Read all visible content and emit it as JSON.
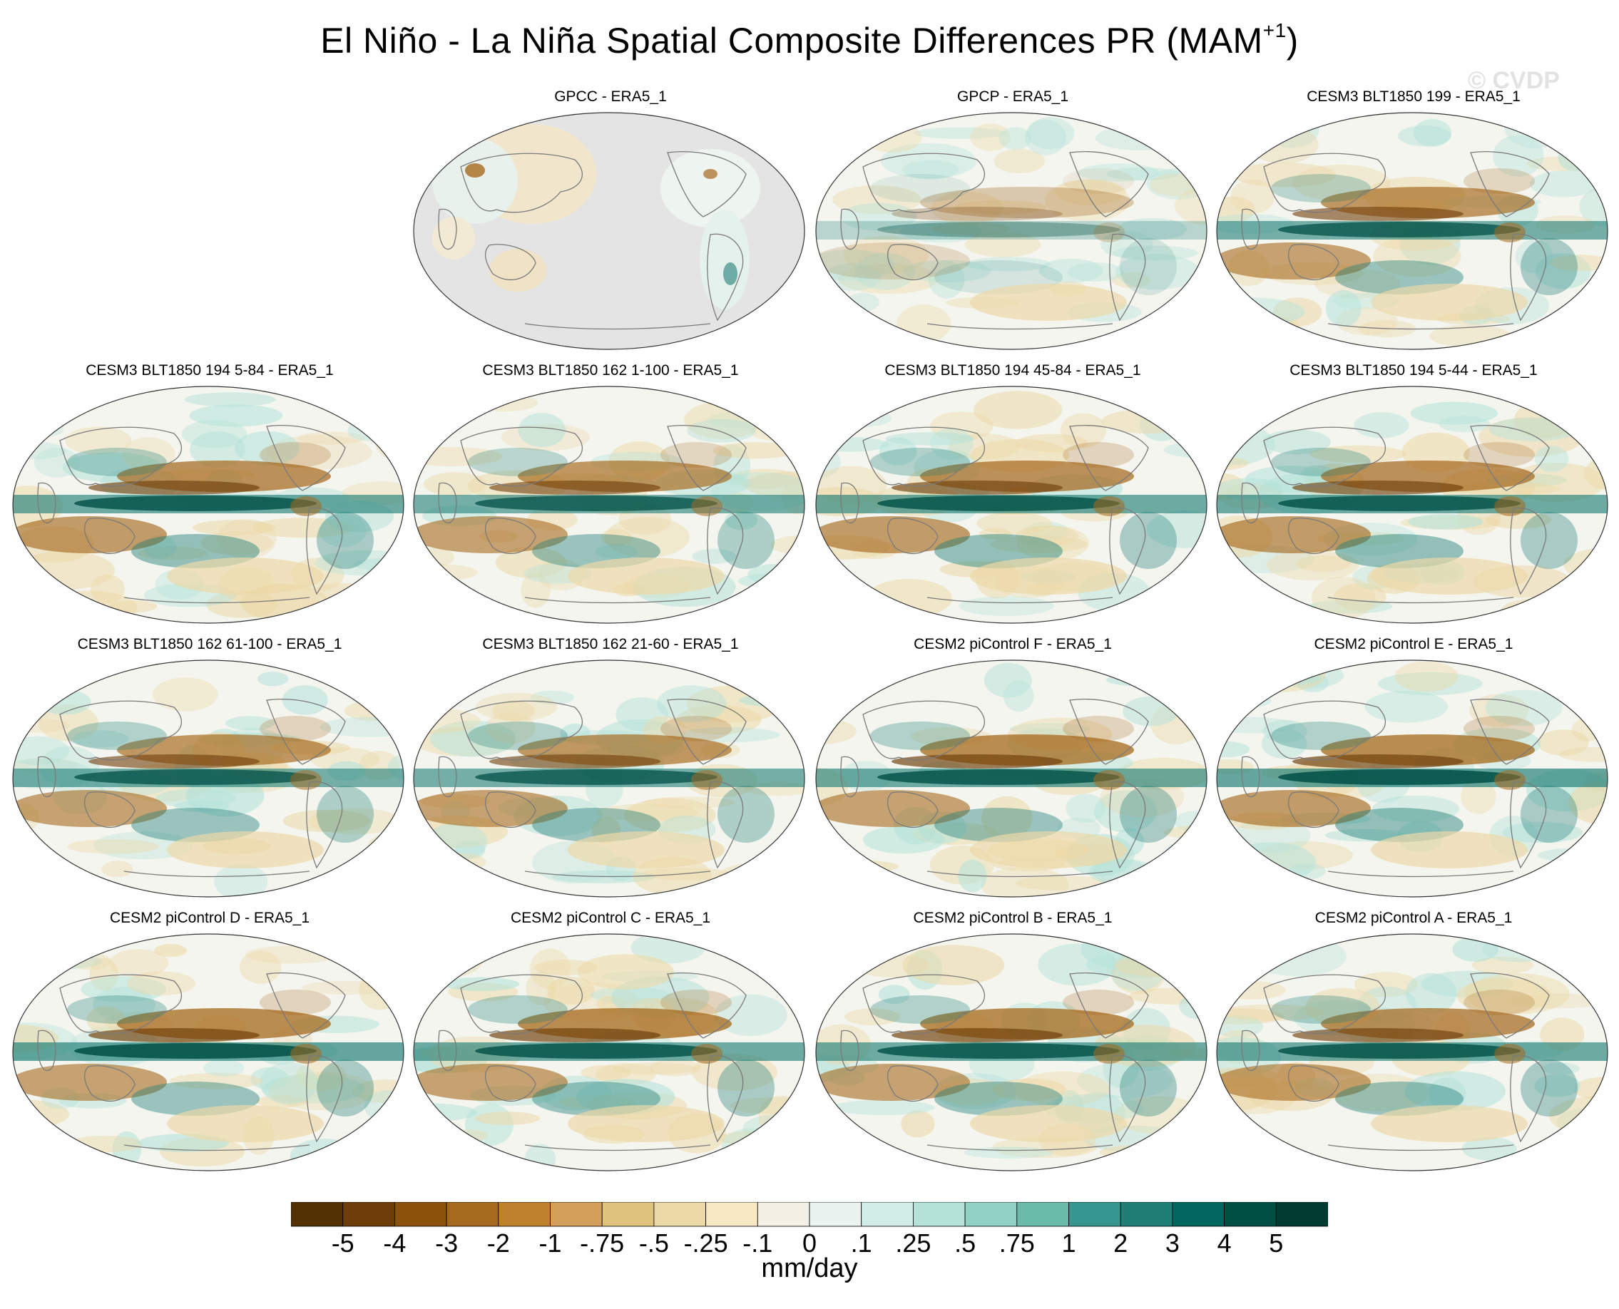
{
  "title": "El Niño - La Niña Spatial Composite Differences PR (MAM",
  "title_superscript": "+1",
  "title_close": ")",
  "watermark": "© CVDP",
  "chart_data": {
    "type": "heatmap",
    "projection": "robinson-pacific-centered",
    "panels": [
      {
        "label": "GPCC - ERA5_1",
        "land_only": true,
        "pattern": [
          0.2,
          0.1,
          0.1,
          0.2,
          0.2
        ]
      },
      {
        "label": "GPCP - ERA5_1",
        "land_only": false,
        "pattern": [
          0.35,
          0.4,
          0.2,
          0.2,
          0.3
        ]
      },
      {
        "label": "CESM3 BLT1850 199 - ERA5_1",
        "land_only": false,
        "pattern": [
          0.75,
          0.85,
          0.6,
          0.55,
          0.7
        ]
      },
      {
        "label": "CESM3 BLT1850 194 5-84 - ERA5_1",
        "land_only": false,
        "pattern": [
          0.8,
          0.9,
          0.65,
          0.6,
          0.7
        ]
      },
      {
        "label": "CESM3 BLT1850 162 1-100 - ERA5_1",
        "land_only": false,
        "pattern": [
          0.75,
          0.85,
          0.6,
          0.55,
          0.65
        ]
      },
      {
        "label": "CESM3 BLT1850 194 45-84 - ERA5_1",
        "land_only": false,
        "pattern": [
          0.8,
          0.9,
          0.65,
          0.6,
          0.7
        ]
      },
      {
        "label": "CESM3 BLT1850 194 5-44 - ERA5_1",
        "land_only": false,
        "pattern": [
          0.8,
          0.9,
          0.65,
          0.6,
          0.7
        ]
      },
      {
        "label": "CESM3 BLT1850 162 61-100 - ERA5_1",
        "land_only": false,
        "pattern": [
          0.75,
          0.85,
          0.6,
          0.6,
          0.65
        ]
      },
      {
        "label": "CESM3 BLT1850 162 21-60 - ERA5_1",
        "land_only": false,
        "pattern": [
          0.75,
          0.85,
          0.6,
          0.6,
          0.65
        ]
      },
      {
        "label": "CESM2 piControl F - ERA5_1",
        "land_only": false,
        "pattern": [
          0.8,
          0.95,
          0.6,
          0.6,
          0.7
        ]
      },
      {
        "label": "CESM2 piControl E - ERA5_1",
        "land_only": false,
        "pattern": [
          0.85,
          0.95,
          0.65,
          0.6,
          0.7
        ]
      },
      {
        "label": "CESM2 piControl D - ERA5_1",
        "land_only": false,
        "pattern": [
          0.85,
          0.95,
          0.6,
          0.6,
          0.7
        ]
      },
      {
        "label": "CESM2 piControl C - ERA5_1",
        "land_only": false,
        "pattern": [
          0.8,
          0.95,
          0.6,
          0.6,
          0.7
        ]
      },
      {
        "label": "CESM2 piControl B - ERA5_1",
        "land_only": false,
        "pattern": [
          0.8,
          0.95,
          0.6,
          0.6,
          0.7
        ]
      },
      {
        "label": "CESM2 piControl A - ERA5_1",
        "land_only": false,
        "pattern": [
          0.8,
          0.9,
          0.6,
          0.6,
          0.7
        ]
      }
    ],
    "colorbar": {
      "levels": [
        "-5",
        "-4",
        "-3",
        "-2",
        "-1",
        "-.75",
        "-.5",
        "-.25",
        "-.1",
        "0",
        ".1",
        ".25",
        ".5",
        ".75",
        "1",
        "2",
        "3",
        "4",
        "5"
      ],
      "colors": [
        "#543005",
        "#6e3d09",
        "#8c510a",
        "#a66a1e",
        "#bf812d",
        "#d2a05b",
        "#dfc27d",
        "#ecd9a8",
        "#f6e8c3",
        "#f5f0e6",
        "#eaf3f0",
        "#d2ece6",
        "#b4e2d9",
        "#8fd1c3",
        "#6bbbab",
        "#35978f",
        "#1f7f77",
        "#01665e",
        "#004f45",
        "#003c30"
      ],
      "unit": "mm/day"
    }
  }
}
